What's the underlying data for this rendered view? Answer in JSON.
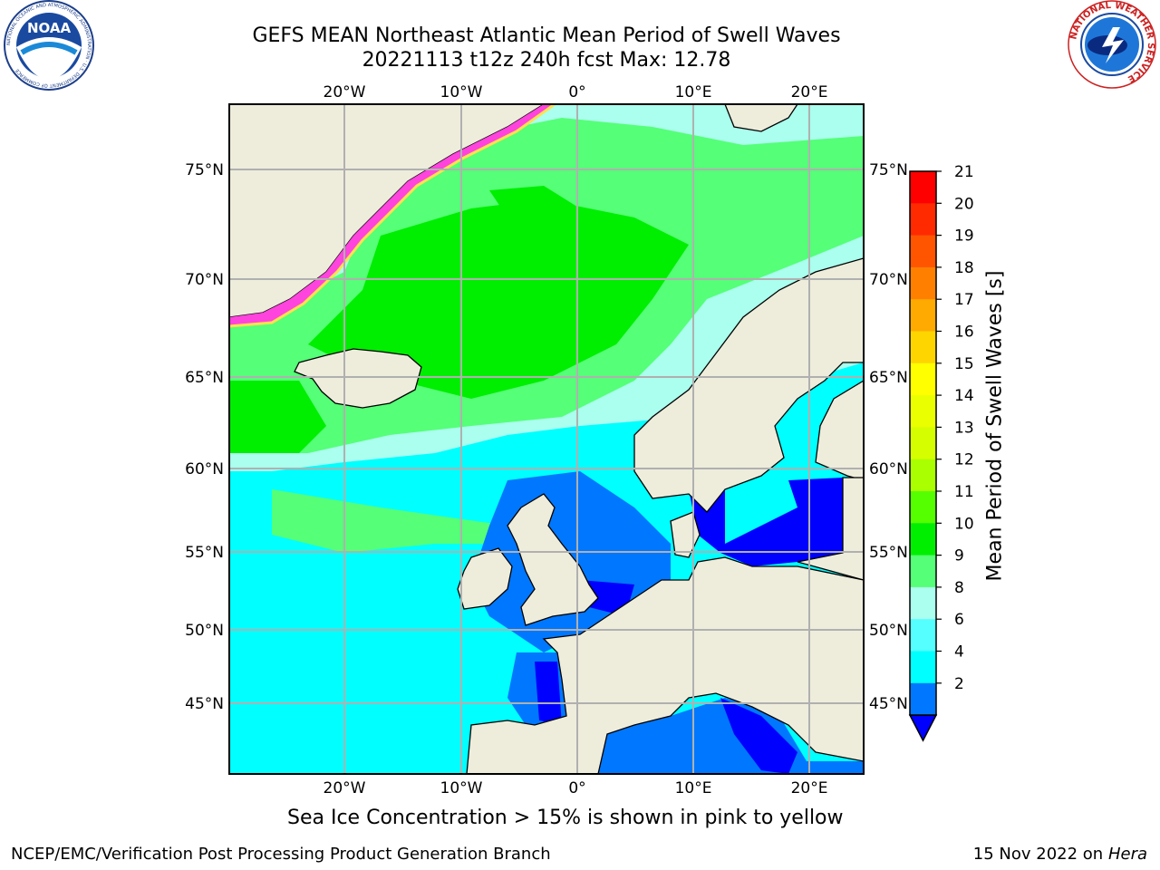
{
  "header": {
    "title_line1": "GEFS MEAN Northeast Atlantic Mean Period of Swell Waves",
    "title_line2": "20221113 t12z 240h fcst   Max: 12.78"
  },
  "logos": {
    "noaa_text": "NOAA",
    "noaa_ring_text": "NATIONAL OCEANIC AND ATMOSPHERIC ADMINISTRATION · U.S. DEPARTMENT OF COMMERCE",
    "nws_ring_text": "NATIONAL WEATHER SERVICE"
  },
  "map": {
    "lon_labels": [
      "20°W",
      "10°W",
      "0°",
      "10°E",
      "20°E"
    ],
    "lat_labels": [
      "75°N",
      "70°N",
      "65°N",
      "60°N",
      "55°N",
      "50°N",
      "45°N"
    ],
    "colors": {
      "land": "#eeeddc",
      "ice_pink": "#ff44dd",
      "ice_yellow": "#ffe14d",
      "grid": "#b0b0b0"
    }
  },
  "colorbar": {
    "label": "Mean Period of Swell Waves [s]",
    "ticks": [
      "21",
      "20",
      "19",
      "18",
      "17",
      "16",
      "15",
      "14",
      "13",
      "12",
      "11",
      "10",
      "9",
      "8",
      "6",
      "4",
      "2"
    ],
    "colors": [
      "#ff0000",
      "#ff2a00",
      "#ff5500",
      "#ff8000",
      "#ffaa00",
      "#ffd500",
      "#ffff00",
      "#eaff00",
      "#d5ff00",
      "#aaff00",
      "#55ff00",
      "#00ee00",
      "#55ff77",
      "#aaffee",
      "#55ffff",
      "#00ffff",
      "#0077ff"
    ],
    "under_color": "#0000ff"
  },
  "footer": {
    "note": "Sea Ice Concentration > 15% is shown in pink to yellow",
    "credit": "NCEP/EMC/Verification Post Processing Product Generation Branch",
    "date": "15 Nov 2022 on",
    "machine": "Hera"
  }
}
